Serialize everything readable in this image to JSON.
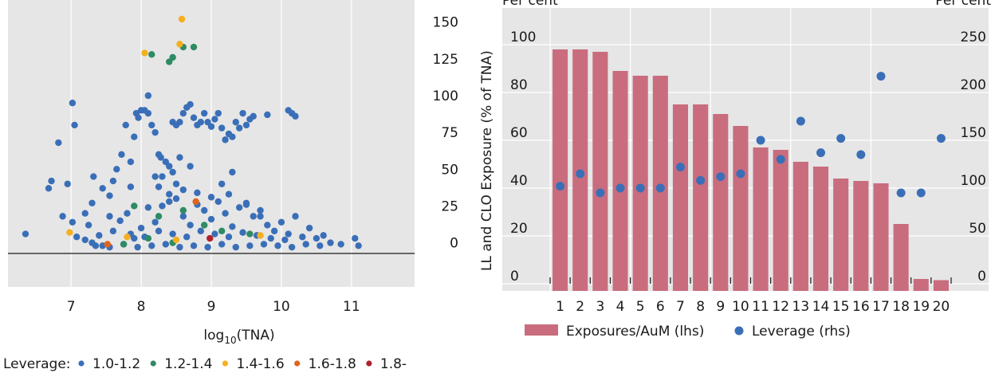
{
  "chart_data": [
    {
      "type": "scatter",
      "xlabel_base": "log",
      "xlabel_sub": "10",
      "xlabel_rest": "(TNA)",
      "ylabel": "LL and CLO Exposure (% of TNA)",
      "xlim": [
        6.1,
        11.9
      ],
      "ylim": [
        -30,
        165
      ],
      "y_axis_side": "right",
      "grid": true,
      "x_ticks": [
        "7",
        "8",
        "9",
        "10",
        "11"
      ],
      "y_ticks": [
        "0",
        "25",
        "50",
        "75",
        "100",
        "125",
        "150"
      ],
      "legend_title": "Leverage:",
      "legend_position": "bottom",
      "series": [
        {
          "name": "1.0-1.2",
          "color": "#3a6fb8",
          "points": [
            [
              6.35,
              6
            ],
            [
              6.68,
              37
            ],
            [
              6.72,
              42
            ],
            [
              6.82,
              68
            ],
            [
              6.95,
              40
            ],
            [
              6.88,
              18
            ],
            [
              7.02,
              95
            ],
            [
              7.05,
              80
            ],
            [
              7.02,
              14
            ],
            [
              7.08,
              4
            ],
            [
              7.2,
              20
            ],
            [
              7.3,
              27
            ],
            [
              7.32,
              45
            ],
            [
              7.45,
              37
            ],
            [
              7.55,
              32
            ],
            [
              7.6,
              42
            ],
            [
              7.65,
              50
            ],
            [
              7.72,
              60
            ],
            [
              7.78,
              80
            ],
            [
              7.85,
              55
            ],
            [
              7.9,
              72
            ],
            [
              7.93,
              88
            ],
            [
              7.96,
              85
            ],
            [
              8.0,
              90
            ],
            [
              8.05,
              90
            ],
            [
              8.1,
              88
            ],
            [
              8.1,
              100
            ],
            [
              8.15,
              80
            ],
            [
              8.2,
              75
            ],
            [
              8.25,
              60
            ],
            [
              8.28,
              58
            ],
            [
              8.3,
              45
            ],
            [
              8.35,
              55
            ],
            [
              8.4,
              52
            ],
            [
              8.45,
              82
            ],
            [
              8.5,
              80
            ],
            [
              8.55,
              82
            ],
            [
              8.6,
              88
            ],
            [
              8.65,
              92
            ],
            [
              8.7,
              94
            ],
            [
              8.75,
              85
            ],
            [
              8.8,
              80
            ],
            [
              8.85,
              82
            ],
            [
              8.9,
              88
            ],
            [
              8.95,
              82
            ],
            [
              9.0,
              79
            ],
            [
              9.05,
              84
            ],
            [
              9.1,
              88
            ],
            [
              9.15,
              78
            ],
            [
              9.2,
              70
            ],
            [
              9.25,
              74
            ],
            [
              9.3,
              72
            ],
            [
              9.35,
              82
            ],
            [
              9.4,
              78
            ],
            [
              9.45,
              88
            ],
            [
              9.5,
              80
            ],
            [
              9.55,
              84
            ],
            [
              9.6,
              86
            ],
            [
              9.8,
              87
            ],
            [
              10.1,
              90
            ],
            [
              10.15,
              88
            ],
            [
              10.2,
              86
            ],
            [
              9.15,
              40
            ],
            [
              9.3,
              48
            ],
            [
              8.55,
              58
            ],
            [
              8.7,
              52
            ],
            [
              8.25,
              38
            ],
            [
              7.85,
              38
            ],
            [
              7.55,
              18
            ],
            [
              7.25,
              12
            ],
            [
              7.2,
              2
            ],
            [
              7.3,
              0
            ],
            [
              7.4,
              5
            ],
            [
              7.45,
              -2
            ],
            [
              7.6,
              8
            ],
            [
              7.7,
              15
            ],
            [
              7.8,
              20
            ],
            [
              7.9,
              3
            ],
            [
              8.0,
              10
            ],
            [
              8.1,
              24
            ],
            [
              8.2,
              14
            ],
            [
              8.3,
              25
            ],
            [
              8.4,
              28
            ],
            [
              8.5,
              30
            ],
            [
              8.6,
              18
            ],
            [
              8.7,
              12
            ],
            [
              8.8,
              26
            ],
            [
              8.9,
              22
            ],
            [
              9.0,
              16
            ],
            [
              9.1,
              28
            ],
            [
              9.2,
              20
            ],
            [
              9.3,
              11
            ],
            [
              9.4,
              24
            ],
            [
              9.5,
              26
            ],
            [
              9.6,
              18
            ],
            [
              9.7,
              22
            ],
            [
              9.8,
              12
            ],
            [
              9.9,
              8
            ],
            [
              10.0,
              14
            ],
            [
              10.1,
              6
            ],
            [
              10.2,
              18
            ],
            [
              10.3,
              4
            ],
            [
              10.4,
              10
            ],
            [
              10.5,
              3
            ],
            [
              10.6,
              5
            ],
            [
              10.7,
              0
            ],
            [
              10.85,
              -1
            ],
            [
              11.05,
              3
            ],
            [
              11.1,
              -2
            ],
            [
              7.35,
              -2
            ],
            [
              7.55,
              -3
            ],
            [
              7.75,
              -1
            ],
            [
              7.95,
              -3
            ],
            [
              8.15,
              -2
            ],
            [
              8.35,
              -1
            ],
            [
              8.55,
              -3
            ],
            [
              8.75,
              -2
            ],
            [
              8.95,
              -3
            ],
            [
              9.15,
              -1
            ],
            [
              9.35,
              -3
            ],
            [
              9.55,
              -2
            ],
            [
              9.75,
              -1
            ],
            [
              9.95,
              -2
            ],
            [
              10.15,
              -3
            ],
            [
              10.35,
              -1
            ],
            [
              10.55,
              -2
            ],
            [
              7.85,
              6
            ],
            [
              8.05,
              4
            ],
            [
              8.25,
              8
            ],
            [
              8.45,
              6
            ],
            [
              8.65,
              4
            ],
            [
              8.85,
              8
            ],
            [
              9.05,
              6
            ],
            [
              9.25,
              4
            ],
            [
              9.45,
              7
            ],
            [
              9.65,
              5
            ],
            [
              9.85,
              3
            ],
            [
              10.05,
              2
            ],
            [
              8.5,
              40
            ],
            [
              8.6,
              36
            ],
            [
              8.4,
              33
            ],
            [
              8.8,
              34
            ],
            [
              9.0,
              31
            ],
            [
              8.2,
              45
            ],
            [
              8.45,
              48
            ],
            [
              9.25,
              33
            ],
            [
              9.5,
              27
            ],
            [
              9.7,
              18
            ]
          ]
        },
        {
          "name": "1.2-1.4",
          "color": "#2e8b64",
          "points": [
            [
              8.15,
              128
            ],
            [
              8.4,
              123
            ],
            [
              8.45,
              126
            ],
            [
              8.6,
              133
            ],
            [
              8.75,
              133
            ],
            [
              7.9,
              25
            ],
            [
              8.25,
              18
            ],
            [
              8.6,
              22
            ],
            [
              8.9,
              12
            ],
            [
              9.15,
              8
            ],
            [
              9.55,
              6
            ],
            [
              8.1,
              3
            ],
            [
              7.75,
              -1
            ],
            [
              8.45,
              0
            ]
          ]
        },
        {
          "name": "1.4-1.6",
          "color": "#f5b021",
          "points": [
            [
              8.58,
              152
            ],
            [
              8.05,
              129
            ],
            [
              8.55,
              135
            ],
            [
              6.98,
              7
            ],
            [
              7.8,
              4
            ],
            [
              9.7,
              5
            ],
            [
              8.5,
              2
            ]
          ]
        },
        {
          "name": "1.6-1.8",
          "color": "#e0641b",
          "points": [
            [
              7.52,
              -1
            ],
            [
              8.78,
              28
            ]
          ]
        },
        {
          "name": "1.8-",
          "color": "#b0202c",
          "points": [
            [
              8.98,
              3
            ]
          ]
        }
      ]
    },
    {
      "type": "bar",
      "left_axis_label": "Per cent",
      "right_axis_label": "Per cent",
      "y_axis_title": "LL and CLO Exposure (% of TNA)",
      "categories": [
        "1",
        "2",
        "3",
        "4",
        "5",
        "6",
        "7",
        "8",
        "9",
        "10",
        "11",
        "12",
        "13",
        "14",
        "15",
        "16",
        "17",
        "18",
        "19",
        "20"
      ],
      "ylim_lhs": [
        -3,
        112
      ],
      "ylim_rhs": [
        -7.5,
        280
      ],
      "lhs_ticks": [
        "0",
        "20",
        "40",
        "60",
        "80",
        "100"
      ],
      "rhs_ticks": [
        "0",
        "50",
        "100",
        "150",
        "200",
        "250"
      ],
      "grid": true,
      "legend_position": "bottom",
      "series": [
        {
          "name": "Exposures/AuM (lhs)",
          "kind": "bar",
          "color": "#c96d7e",
          "values": [
            98,
            98,
            97,
            89,
            87,
            87,
            75,
            75,
            71,
            66,
            57,
            56,
            51,
            49,
            44,
            43,
            42,
            25,
            2,
            1.5
          ]
        },
        {
          "name": "Leverage (rhs)",
          "kind": "scatter",
          "color": "#3a6fb8",
          "values": [
            102,
            115,
            95,
            100,
            100,
            100,
            122,
            108,
            112,
            115,
            150,
            130,
            170,
            137,
            152,
            135,
            217,
            95,
            95,
            152
          ]
        }
      ]
    }
  ]
}
